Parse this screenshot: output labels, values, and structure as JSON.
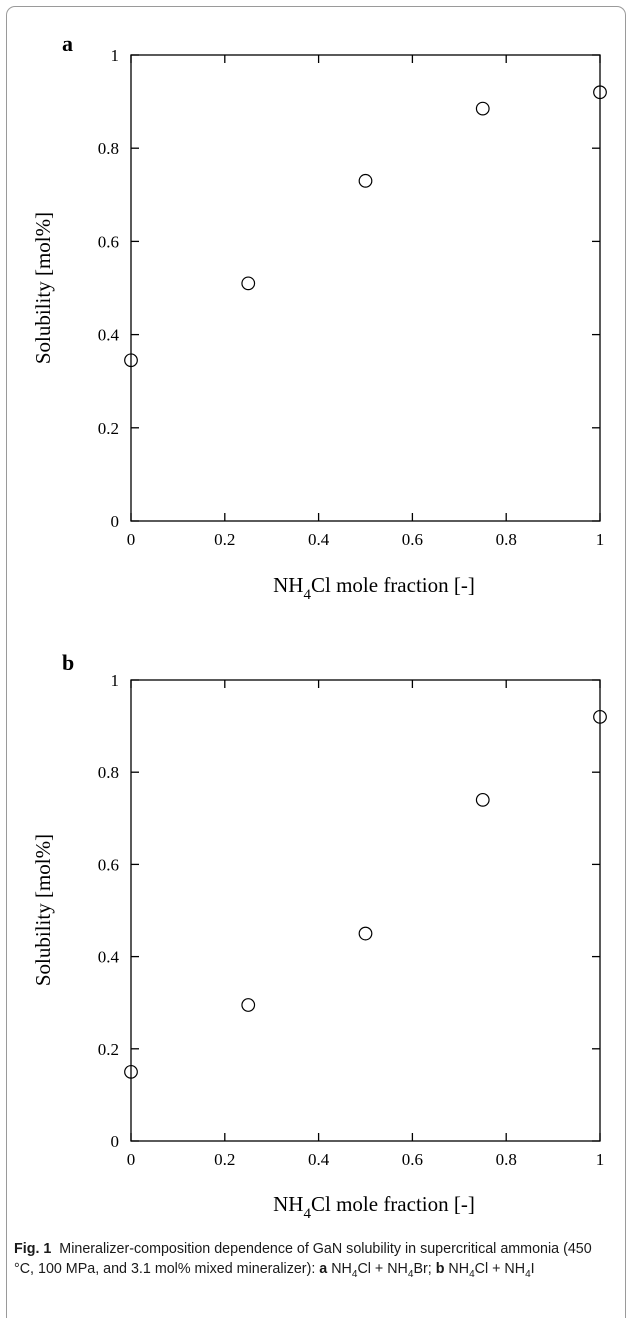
{
  "figure": {
    "caption": {
      "label": "Fig. 1",
      "text_1": "Mineralizer-composition dependence of GaN solubility in supercritical ammonia (450 °C, 100 MPa, and 3.1 mol% mixed mineralizer): ",
      "a": "a",
      "a_text": "NH4Cl + NH4Br; ",
      "b": "b",
      "b_text": "NH4Cl + NH4I"
    }
  },
  "chart_data": [
    {
      "type": "scatter",
      "panel_label": "a",
      "xlabel": "NH4Cl mole fraction [-]",
      "ylabel": "Solubility [mol%]",
      "xlim": [
        0,
        1
      ],
      "ylim": [
        0,
        1
      ],
      "xticks": [
        "0",
        "0.2",
        "0.4",
        "0.6",
        "0.8",
        "1"
      ],
      "yticks": [
        "0",
        "0.2",
        "0.4",
        "0.6",
        "0.8",
        "1"
      ],
      "x": [
        0,
        0.25,
        0.5,
        0.75,
        1
      ],
      "y": [
        0.345,
        0.51,
        0.73,
        0.885,
        0.92
      ],
      "marker": "open-circle",
      "grid": false
    },
    {
      "type": "scatter",
      "panel_label": "b",
      "xlabel": "NH4Cl mole fraction [-]",
      "ylabel": "Solubility [mol%]",
      "xlim": [
        0,
        1
      ],
      "ylim": [
        0,
        1
      ],
      "xticks": [
        "0",
        "0.2",
        "0.4",
        "0.6",
        "0.8",
        "1"
      ],
      "yticks": [
        "0",
        "0.2",
        "0.4",
        "0.6",
        "0.8",
        "1"
      ],
      "x": [
        0,
        0.25,
        0.5,
        0.75,
        1
      ],
      "y": [
        0.15,
        0.295,
        0.45,
        0.74,
        0.92
      ],
      "marker": "open-circle",
      "grid": false
    }
  ]
}
